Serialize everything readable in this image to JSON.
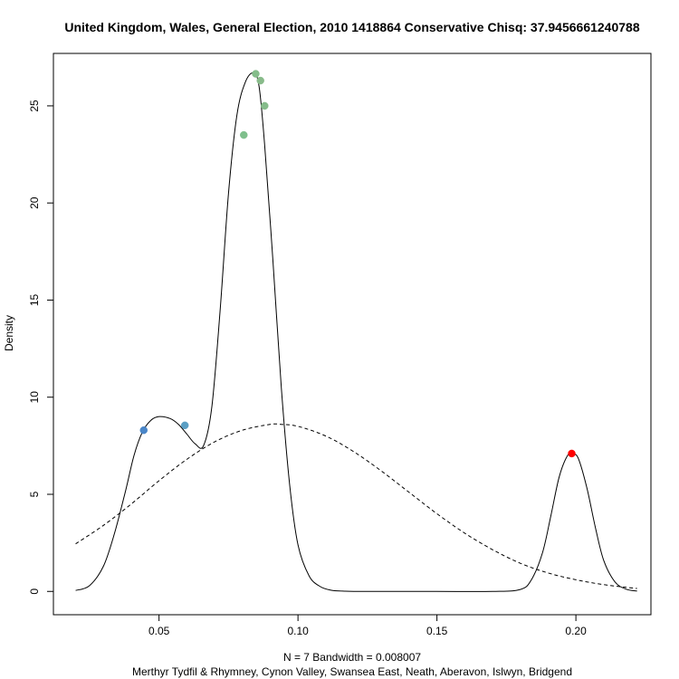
{
  "chart_data": {
    "type": "line",
    "title": "United Kingdom, Wales, General Election, 2010 1418864 Conservative Chisq: 37.9456661240788",
    "xlabel_line1": "N = 7   Bandwidth = 0.008007",
    "xlabel_line2": "Merthyr Tydfil & Rhymney, Cynon Valley, Swansea East, Neath, Aberavon, Islwyn, Bridgend",
    "ylabel": "Density",
    "xlim": [
      0.012,
      0.227
    ],
    "ylim": [
      -1.2,
      27.7
    ],
    "x_ticks": [
      0.05,
      0.1,
      0.15,
      0.2
    ],
    "x_tick_labels": [
      "0.05",
      "0.10",
      "0.15",
      "0.20"
    ],
    "y_ticks": [
      0,
      5,
      10,
      15,
      20,
      25
    ],
    "y_tick_labels": [
      "0",
      "5",
      "10",
      "15",
      "20",
      "25"
    ],
    "grid": false,
    "series": [
      {
        "style": "solid",
        "color": "#000000",
        "x": [
          0.02,
          0.025,
          0.03,
          0.034,
          0.038,
          0.041,
          0.044,
          0.047,
          0.05,
          0.054,
          0.057,
          0.06,
          0.063,
          0.066,
          0.069,
          0.072,
          0.075,
          0.078,
          0.081,
          0.084,
          0.086,
          0.088,
          0.091,
          0.094,
          0.097,
          0.1,
          0.104,
          0.108,
          0.112,
          0.116,
          0.12,
          0.13,
          0.15,
          0.17,
          0.18,
          0.184,
          0.188,
          0.191,
          0.194,
          0.197,
          0.199,
          0.201,
          0.204,
          0.207,
          0.21,
          0.214,
          0.218,
          0.222
        ],
        "y": [
          0.05,
          0.3,
          1.3,
          3.0,
          5.2,
          7.0,
          8.2,
          8.8,
          9.0,
          8.9,
          8.6,
          8.1,
          7.6,
          7.5,
          9.5,
          14.5,
          20.5,
          24.5,
          26.2,
          26.7,
          26.0,
          23.0,
          17.0,
          10.5,
          5.5,
          2.4,
          0.8,
          0.25,
          0.06,
          0.02,
          0.0,
          0.0,
          0.0,
          0.0,
          0.1,
          0.6,
          2.0,
          3.9,
          5.9,
          7.0,
          7.1,
          6.8,
          5.3,
          3.3,
          1.6,
          0.5,
          0.12,
          0.02
        ]
      },
      {
        "style": "dashed",
        "color": "#000000",
        "x": [
          0.02,
          0.03,
          0.04,
          0.05,
          0.06,
          0.07,
          0.08,
          0.09,
          0.094,
          0.1,
          0.11,
          0.12,
          0.13,
          0.14,
          0.15,
          0.16,
          0.17,
          0.18,
          0.19,
          0.2,
          0.21,
          0.222
        ],
        "y": [
          2.45,
          3.4,
          4.5,
          5.7,
          6.8,
          7.7,
          8.3,
          8.6,
          8.6,
          8.5,
          8.0,
          7.2,
          6.2,
          5.1,
          4.0,
          3.0,
          2.15,
          1.45,
          0.95,
          0.6,
          0.35,
          0.15
        ]
      }
    ],
    "points": [
      {
        "x": 0.0445,
        "y": 8.3,
        "color": "#4a86c8"
      },
      {
        "x": 0.0593,
        "y": 8.55,
        "color": "#5b9fc4"
      },
      {
        "x": 0.0805,
        "y": 23.5,
        "color": "#7fbf8c"
      },
      {
        "x": 0.0848,
        "y": 26.65,
        "color": "#84bd8a"
      },
      {
        "x": 0.0865,
        "y": 26.3,
        "color": "#88bb8a"
      },
      {
        "x": 0.088,
        "y": 25.0,
        "color": "#86bc8b"
      },
      {
        "x": 0.1985,
        "y": 7.1,
        "color": "#ff0000"
      }
    ]
  }
}
